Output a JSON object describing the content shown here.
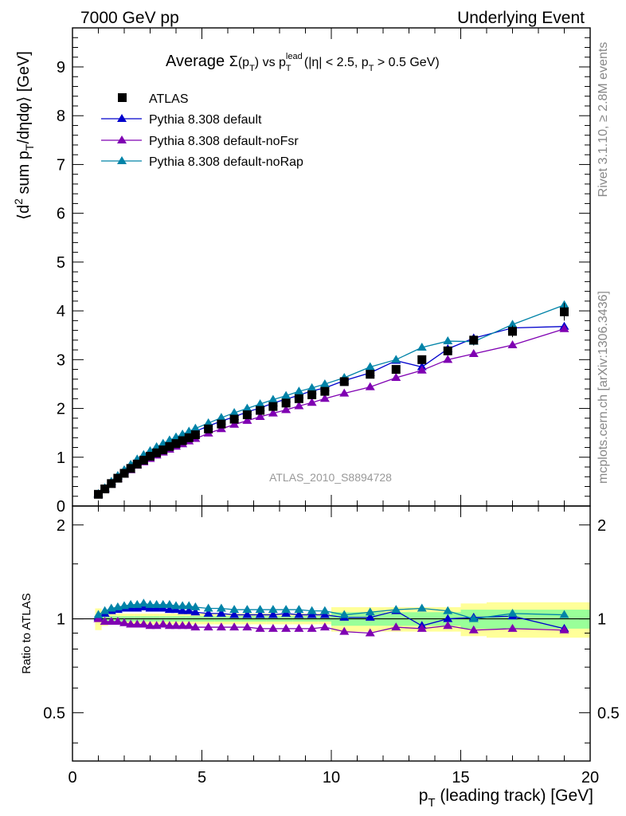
{
  "header": {
    "left": "7000 GeV pp",
    "right": "Underlying Event"
  },
  "side_labels": {
    "rivet": "Rivet 3.1.10, ≥ 2.8M events",
    "mcplots": "mcplots.cern.ch [arXiv:1306.3436]"
  },
  "chart_data": {
    "type": "scatter",
    "title_parts": {
      "prefix": "Average ",
      "sigma": "Σ",
      "pt_paren_open": "(p",
      "pt_sub": "T",
      "pt_paren_close": ")",
      "vs": " vs p",
      "lead_sup": "lead",
      "lead_sub": "T",
      "cuts1": " (|η| < 2.5, p",
      "cuts_sub": "T",
      "cuts2": " > 0.5 GeV)"
    },
    "watermark": "ATLAS_2010_S8894728",
    "xlabel": {
      "main": "p",
      "sub": "T",
      "rest": " (leading track) [GeV]"
    },
    "ylabel": {
      "open": "⟨d",
      "sup": "2",
      "mid": " sum p",
      "sub": "T",
      "rest": "/dηdφ⟩ [GeV]"
    },
    "ratio_ylabel": "Ratio to ATLAS",
    "xlim": [
      0,
      20
    ],
    "ylim": [
      0,
      9.8
    ],
    "ratio_ylim": [
      0.35,
      2.3
    ],
    "x_ticks": [
      "0",
      "5",
      "10",
      "15",
      "20"
    ],
    "y_ticks": [
      "0",
      "1",
      "2",
      "3",
      "4",
      "5",
      "6",
      "7",
      "8",
      "9"
    ],
    "ratio_ticks": [
      "0.5",
      "1",
      "2"
    ],
    "legend": {
      "placement": "top-left",
      "entries": [
        "ATLAS",
        "Pythia 8.308 default",
        "Pythia 8.308 default-noFsr",
        "Pythia 8.308 default-noRap"
      ]
    },
    "colors": {
      "ATLAS": "#000000",
      "default": "#0000cc",
      "noFsr": "#7f00b2",
      "noRap": "#0083a8",
      "band_outer": "#ffff99",
      "band_inner": "#99ff99"
    },
    "x": [
      1.0,
      1.25,
      1.5,
      1.75,
      2.0,
      2.25,
      2.5,
      2.75,
      3.0,
      3.25,
      3.5,
      3.75,
      4.0,
      4.25,
      4.5,
      4.75,
      5.25,
      5.75,
      6.25,
      6.75,
      7.25,
      7.75,
      8.25,
      8.75,
      9.25,
      9.75,
      10.5,
      11.5,
      12.5,
      13.5,
      14.5,
      15.5,
      17.0,
      19.0
    ],
    "x_bin_edges": [
      0.875,
      1.125,
      1.375,
      1.625,
      1.875,
      2.125,
      2.375,
      2.625,
      2.875,
      3.125,
      3.375,
      3.625,
      3.875,
      4.125,
      4.375,
      4.625,
      5.0,
      5.5,
      6.0,
      6.5,
      7.0,
      7.5,
      8.0,
      8.5,
      9.0,
      9.5,
      10.0,
      11.0,
      12.0,
      13.0,
      14.0,
      15.0,
      16.0,
      18.0,
      20.0
    ],
    "series": [
      {
        "name": "ATLAS",
        "values": [
          0.24,
          0.35,
          0.46,
          0.57,
          0.67,
          0.77,
          0.86,
          0.94,
          1.02,
          1.09,
          1.15,
          1.22,
          1.28,
          1.34,
          1.4,
          1.46,
          1.58,
          1.68,
          1.78,
          1.87,
          1.96,
          2.04,
          2.11,
          2.2,
          2.28,
          2.35,
          2.55,
          2.7,
          2.8,
          3.0,
          3.18,
          3.4,
          3.58,
          3.98
        ],
        "errors": [
          0.01,
          0.01,
          0.01,
          0.01,
          0.01,
          0.01,
          0.01,
          0.01,
          0.01,
          0.01,
          0.01,
          0.01,
          0.02,
          0.02,
          0.02,
          0.02,
          0.02,
          0.02,
          0.02,
          0.03,
          0.03,
          0.03,
          0.03,
          0.03,
          0.04,
          0.04,
          0.04,
          0.05,
          0.06,
          0.07,
          0.09,
          0.11,
          0.12,
          0.18
        ]
      },
      {
        "name": "Pythia 8.308 default",
        "values": [
          0.24,
          0.36,
          0.49,
          0.61,
          0.72,
          0.83,
          0.93,
          1.02,
          1.1,
          1.17,
          1.24,
          1.3,
          1.36,
          1.42,
          1.48,
          1.53,
          1.64,
          1.74,
          1.83,
          1.93,
          2.01,
          2.11,
          2.19,
          2.27,
          2.36,
          2.42,
          2.57,
          2.73,
          2.98,
          2.85,
          3.22,
          3.44,
          3.65,
          3.68
        ],
        "ratio": [
          1.01,
          1.04,
          1.06,
          1.07,
          1.08,
          1.08,
          1.08,
          1.09,
          1.08,
          1.08,
          1.08,
          1.07,
          1.07,
          1.06,
          1.06,
          1.05,
          1.04,
          1.04,
          1.03,
          1.03,
          1.03,
          1.03,
          1.04,
          1.03,
          1.03,
          1.03,
          1.01,
          1.01,
          1.06,
          0.95,
          1.0,
          1.01,
          1.02,
          0.93
        ]
      },
      {
        "name": "Pythia 8.308 default-noFsr",
        "values": [
          0.24,
          0.34,
          0.45,
          0.56,
          0.65,
          0.74,
          0.83,
          0.9,
          0.97,
          1.04,
          1.1,
          1.16,
          1.22,
          1.27,
          1.33,
          1.38,
          1.49,
          1.58,
          1.67,
          1.75,
          1.83,
          1.9,
          1.97,
          2.05,
          2.12,
          2.2,
          2.31,
          2.44,
          2.63,
          2.78,
          3.0,
          3.12,
          3.3,
          3.63
        ],
        "ratio": [
          1.0,
          0.98,
          0.98,
          0.98,
          0.97,
          0.96,
          0.96,
          0.96,
          0.95,
          0.95,
          0.96,
          0.95,
          0.95,
          0.95,
          0.95,
          0.94,
          0.94,
          0.94,
          0.94,
          0.94,
          0.93,
          0.93,
          0.93,
          0.93,
          0.93,
          0.94,
          0.91,
          0.9,
          0.94,
          0.93,
          0.95,
          0.92,
          0.93,
          0.92
        ]
      },
      {
        "name": "Pythia 8.308 default-noRap",
        "values": [
          0.25,
          0.37,
          0.5,
          0.62,
          0.74,
          0.85,
          0.96,
          1.05,
          1.13,
          1.21,
          1.28,
          1.35,
          1.41,
          1.47,
          1.53,
          1.59,
          1.7,
          1.81,
          1.91,
          2.0,
          2.09,
          2.18,
          2.26,
          2.35,
          2.42,
          2.5,
          2.63,
          2.85,
          3.0,
          3.25,
          3.38,
          3.37,
          3.72,
          4.12
        ],
        "ratio": [
          1.03,
          1.06,
          1.08,
          1.09,
          1.1,
          1.11,
          1.11,
          1.12,
          1.11,
          1.11,
          1.11,
          1.11,
          1.1,
          1.1,
          1.1,
          1.09,
          1.08,
          1.08,
          1.07,
          1.07,
          1.07,
          1.07,
          1.07,
          1.07,
          1.06,
          1.06,
          1.03,
          1.05,
          1.07,
          1.08,
          1.06,
          1.0,
          1.04,
          1.03
        ]
      }
    ],
    "ratio_bands": {
      "outer": [
        0.08,
        0.05,
        0.04,
        0.04,
        0.04,
        0.04,
        0.04,
        0.04,
        0.04,
        0.04,
        0.04,
        0.04,
        0.04,
        0.04,
        0.04,
        0.04,
        0.04,
        0.04,
        0.04,
        0.04,
        0.04,
        0.04,
        0.04,
        0.04,
        0.04,
        0.04,
        0.09,
        0.09,
        0.09,
        0.09,
        0.09,
        0.12,
        0.13,
        0.13
      ],
      "inner": [
        0.02,
        0.02,
        0.02,
        0.02,
        0.02,
        0.02,
        0.02,
        0.02,
        0.02,
        0.02,
        0.02,
        0.02,
        0.02,
        0.02,
        0.02,
        0.02,
        0.02,
        0.02,
        0.02,
        0.02,
        0.02,
        0.02,
        0.02,
        0.02,
        0.02,
        0.02,
        0.05,
        0.05,
        0.05,
        0.05,
        0.05,
        0.07,
        0.07,
        0.07
      ]
    }
  }
}
